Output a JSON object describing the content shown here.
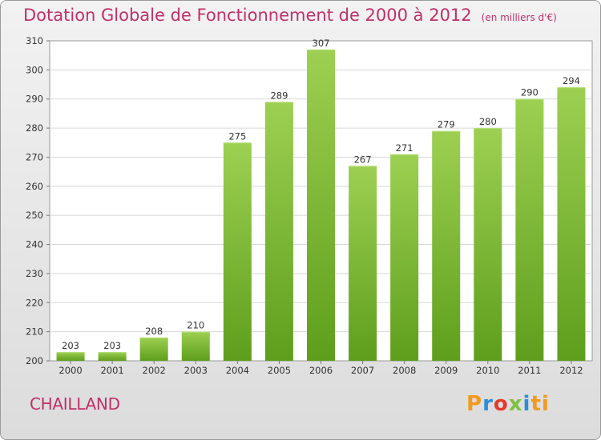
{
  "title": "Dotation Globale de Fonctionnement de 2000 à 2012",
  "subtitle": "(en milliers d'€)",
  "commune": "CHAILLAND",
  "logo": {
    "text": "Proxiti",
    "colors": [
      "#f29a1b",
      "#2a8fd6",
      "#e23b2e",
      "#7cc142",
      "#2a8fd6",
      "#f29a1b"
    ]
  },
  "colors": {
    "bar_top": "#9dd052",
    "bar_bottom": "#5e9e1c",
    "title": "#c0306a"
  },
  "chart_data": {
    "type": "bar",
    "categories": [
      "2000",
      "2001",
      "2002",
      "2003",
      "2004",
      "2005",
      "2006",
      "2007",
      "2008",
      "2009",
      "2010",
      "2011",
      "2012"
    ],
    "values": [
      203,
      203,
      208,
      210,
      275,
      289,
      307,
      267,
      271,
      279,
      280,
      290,
      294
    ],
    "ylim": [
      200,
      310
    ],
    "yticks": [
      200,
      210,
      220,
      230,
      240,
      250,
      260,
      270,
      280,
      290,
      300,
      310
    ],
    "grid": true
  }
}
